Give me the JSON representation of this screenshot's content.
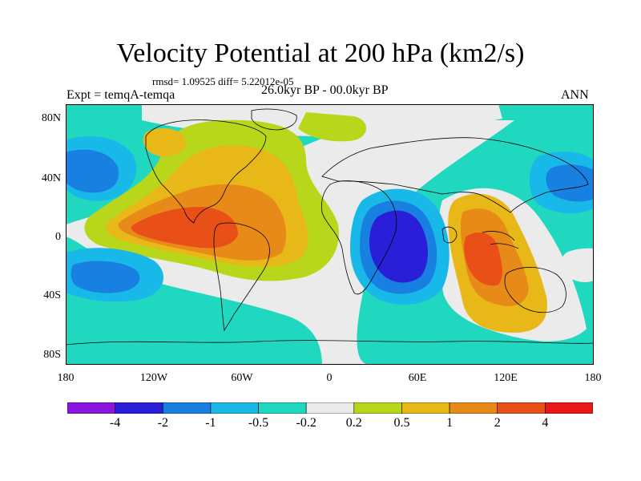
{
  "title": "Velocity Potential at 200 hPa (km2/s)",
  "stats": "rmsd= 1.09525 diff= 5.22012e-05",
  "left_label": "Expt = temqA-temqa",
  "center_label": "26.0kyr BP - 00.0kyr BP",
  "right_label": "ANN",
  "lat_ticks": [
    "80N",
    "40N",
    "0",
    "40S",
    "80S"
  ],
  "lon_ticks": [
    "180",
    "120W",
    "60W",
    "0",
    "60E",
    "120E",
    "180"
  ],
  "colorbar": {
    "labels": [
      "-4",
      "-2",
      "-1",
      "-0.5",
      "-0.2",
      "0.2",
      "0.5",
      "1",
      "2",
      "4"
    ],
    "colors": [
      "#8a16e0",
      "#2a1fd8",
      "#1880e0",
      "#18b8e8",
      "#20d8c0",
      "#ebebeb",
      "#b8d61a",
      "#e8b818",
      "#e88a18",
      "#e85018",
      "#e81818"
    ]
  }
}
